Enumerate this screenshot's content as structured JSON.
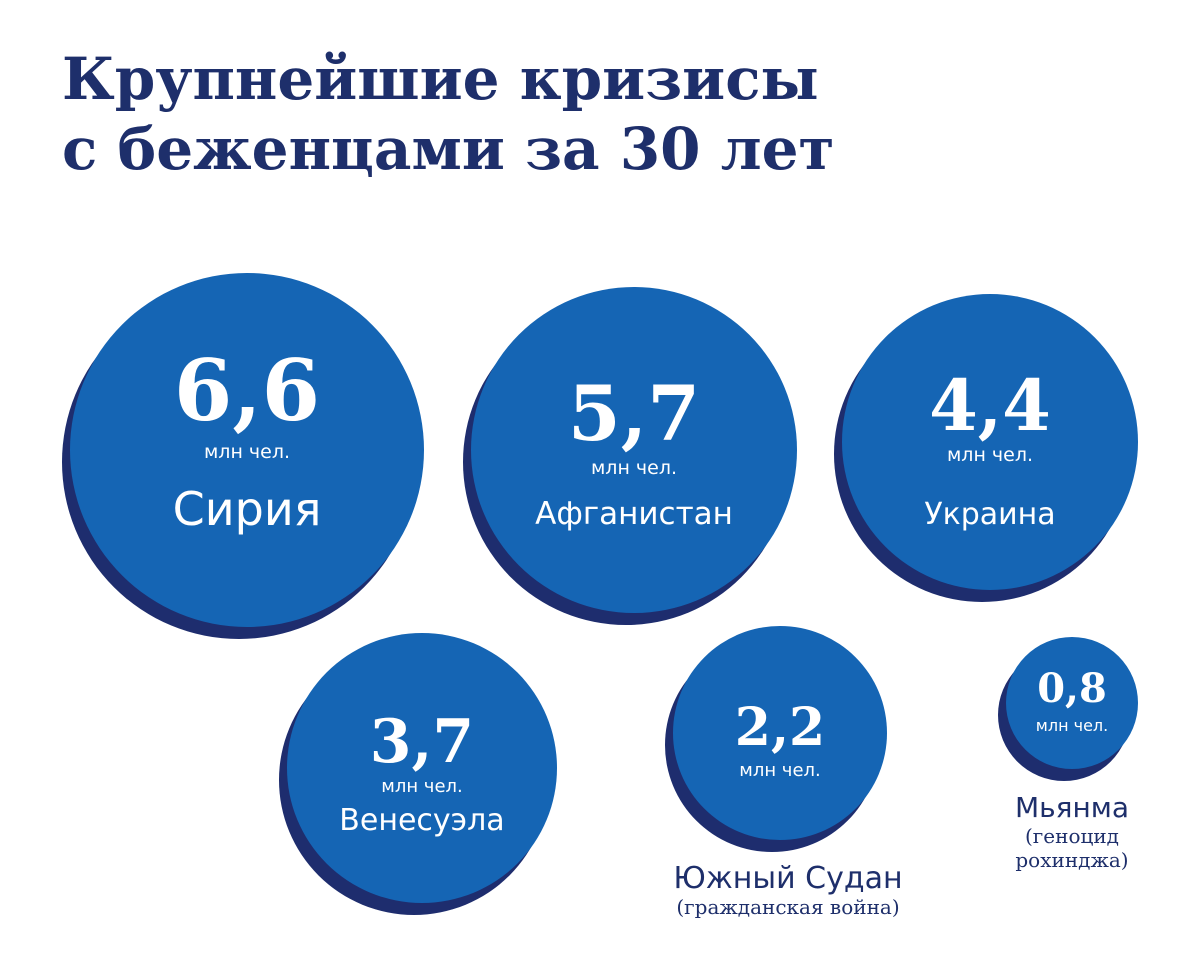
{
  "title_line1": "Крупнейшие кризисы",
  "title_line2": "с беженцами за 30 лет",
  "colors": {
    "circle": "#1565b4",
    "shadow": "#1e2d6e",
    "title": "#1e2f6b",
    "text": "#ffffff"
  },
  "chart_data": {
    "type": "bubble",
    "unit": "млн чел.",
    "items": [
      {
        "value": "6,6",
        "numeric": 6.6,
        "unit": "млн чел.",
        "country": "Сирия",
        "note": ""
      },
      {
        "value": "5,7",
        "numeric": 5.7,
        "unit": "млн чел.",
        "country": "Афганистан",
        "note": ""
      },
      {
        "value": "4,4",
        "numeric": 4.4,
        "unit": "млн чел.",
        "country": "Украина",
        "note": ""
      },
      {
        "value": "3,7",
        "numeric": 3.7,
        "unit": "млн чел.",
        "country": "Венесуэла",
        "note": ""
      },
      {
        "value": "2,2",
        "numeric": 2.2,
        "unit": "млн чел.",
        "country": "Южный Судан",
        "note": "(гражданская война)"
      },
      {
        "value": "0,8",
        "numeric": 0.8,
        "unit": "млн чел.",
        "country": "Мьянма",
        "note": "(геноцид рохинджа)"
      }
    ]
  }
}
